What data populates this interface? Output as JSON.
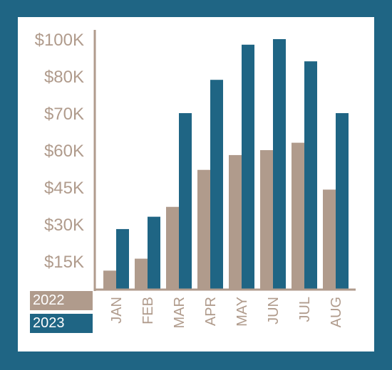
{
  "chart_data": {
    "type": "bar",
    "title": "",
    "xlabel": "",
    "ylabel": "",
    "categories": [
      "JAN",
      "FEB",
      "MAR",
      "APR",
      "MAY",
      "JUN",
      "JUL",
      "AUG"
    ],
    "y_tick_labels": [
      "$15K",
      "$30K",
      "$45K",
      "$60K",
      "$70K",
      "$80K",
      "$100K"
    ],
    "series": [
      {
        "name": "2022",
        "values": [
          10000,
          16000,
          37000,
          52000,
          58000,
          60000,
          62000,
          44000
        ]
      },
      {
        "name": "2023",
        "values": [
          28000,
          33000,
          70000,
          79000,
          97000,
          100000,
          88000,
          70000
        ]
      }
    ],
    "legend_position": "bottom-left",
    "grid": false,
    "colors": {
      "2022": "#b09b8c",
      "2023": "#1f6584",
      "axis": "#b09b8c",
      "background": "#ffffff",
      "frame": "#1f6584"
    }
  }
}
